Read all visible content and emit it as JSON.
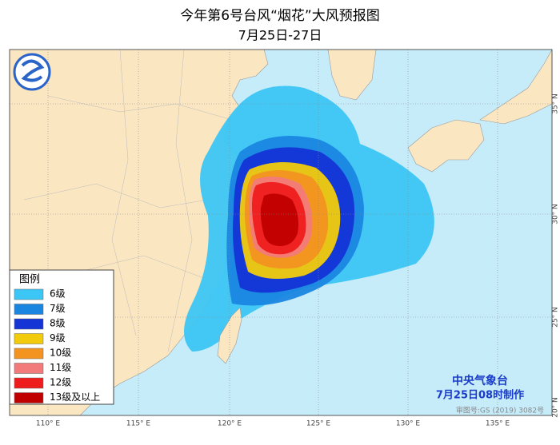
{
  "header": {
    "title": "今年第6号台风“烟花”大风预报图",
    "subtitle": "7月25日-27日"
  },
  "legend": {
    "title": "图例",
    "items": [
      {
        "label": "6级",
        "color": "#3cc6f6"
      },
      {
        "label": "7级",
        "color": "#1a86e0"
      },
      {
        "label": "8级",
        "color": "#1434d6"
      },
      {
        "label": "9级",
        "color": "#f2cc0c"
      },
      {
        "label": "10级",
        "color": "#f39420"
      },
      {
        "label": "11级",
        "color": "#f27a7a"
      },
      {
        "label": "12级",
        "color": "#ee1c1c"
      },
      {
        "label": "13级及以上",
        "color": "#c00000"
      }
    ]
  },
  "footer": {
    "agency": "中央气象台",
    "issued": "7月25日08时制作",
    "approval": "审图号:GS (2019) 3082号"
  },
  "axes": {
    "longitudes": [
      "110° E",
      "115° E",
      "120° E",
      "125° E",
      "130° E",
      "135° E"
    ],
    "latitudes": [
      "35° N",
      "30° N",
      "25° N",
      "20° N"
    ]
  }
}
